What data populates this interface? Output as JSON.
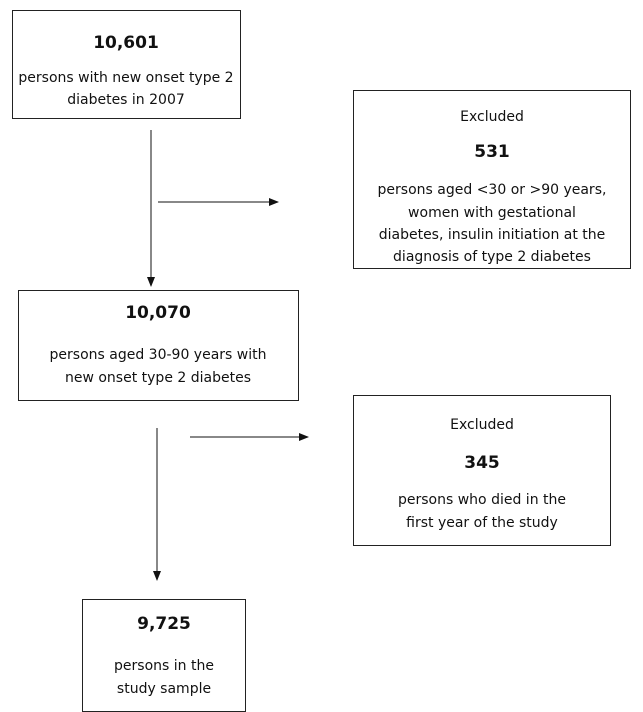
{
  "nodes": [
    {
      "count": "10,601",
      "lines": [
        "persons with new onset type 2",
        "diabetes in 2007"
      ]
    },
    {
      "heading": "Excluded",
      "count": "531",
      "lines": [
        "persons aged <30 or >90 years,",
        "women with gestational",
        "diabetes, insulin initiation at the",
        "diagnosis of type 2 diabetes"
      ]
    },
    {
      "count": "10,070",
      "lines": [
        "persons aged 30-90 years with",
        "new onset type 2 diabetes"
      ]
    },
    {
      "heading": "Excluded",
      "count": "345",
      "lines": [
        "persons who died in the",
        "first year of the study"
      ]
    },
    {
      "count": "9,725",
      "lines": [
        "persons in the",
        "study sample"
      ]
    }
  ]
}
